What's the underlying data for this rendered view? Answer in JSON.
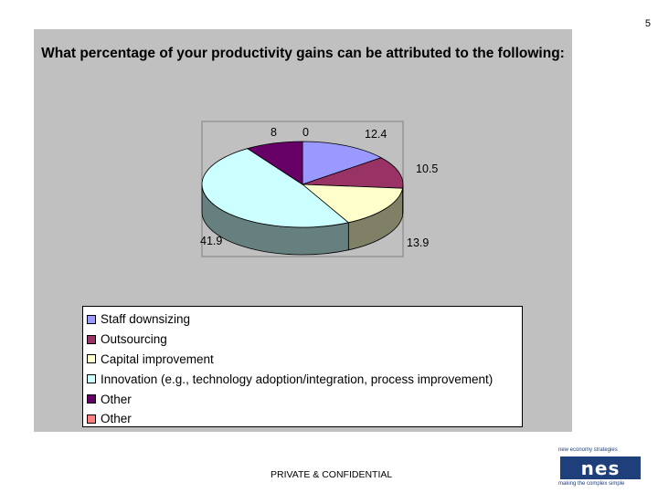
{
  "page_number": "5",
  "footer": "PRIVATE & CONFIDENTIAL",
  "logo": {
    "tagline_top": "new economy strategies",
    "letters": "nes",
    "tagline_bottom": "making the complex simple"
  },
  "chart_data": {
    "type": "pie",
    "title": "What percentage of your productivity gains can be attributed to the following:",
    "legend_position": "bottom",
    "slices": [
      {
        "label": "Staff downsizing",
        "value": 12.4,
        "display": "12.4",
        "color": "#9999ff"
      },
      {
        "label": "Outsourcing",
        "value": 10.5,
        "display": "10.5",
        "color": "#993366"
      },
      {
        "label": "Capital improvement",
        "value": 13.9,
        "display": "13.9",
        "color": "#ffffcc"
      },
      {
        "label": "Innovation (e.g., technology adoption/integration, process improvement)",
        "value": 41.9,
        "display": "41.9",
        "color": "#ccffff"
      },
      {
        "label": "Other",
        "value": 8,
        "display": "8",
        "color": "#660066"
      },
      {
        "label": "Other",
        "value": 0,
        "display": "0",
        "color": "#ff8080"
      }
    ]
  }
}
